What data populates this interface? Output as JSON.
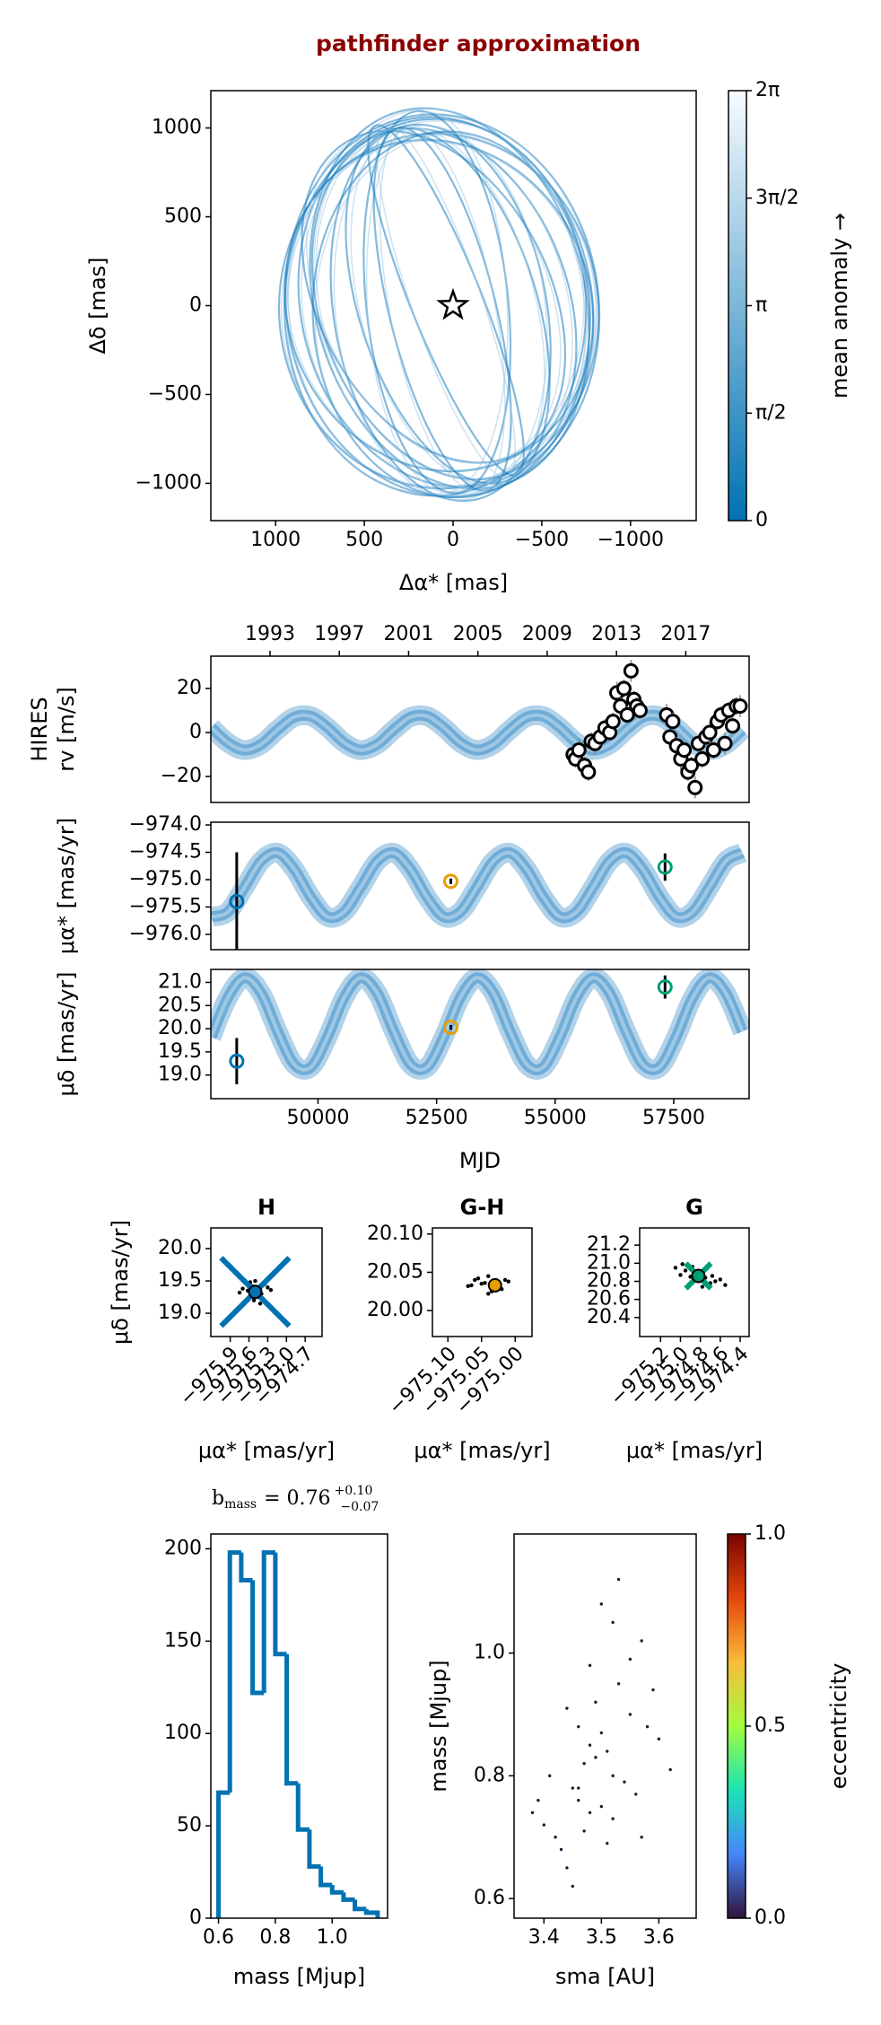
{
  "chart_data": [
    {
      "type": "orbit",
      "title": "pathfinder approximation",
      "xlabel": "Δα* [mas]",
      "ylabel": "Δδ [mas]",
      "xlim": [
        1365,
        -1370
      ],
      "ylim": [
        -1210,
        1210
      ],
      "xticks": [
        1000,
        500,
        0,
        {
          "value": -500,
          "label": "−500"
        },
        {
          "value": -1000,
          "label": "−1000"
        }
      ],
      "yticks": [
        1000,
        500,
        0,
        {
          "value": -500,
          "label": "−500"
        },
        {
          "value": -1000,
          "label": "−1000"
        }
      ],
      "color": "#1f7fc0",
      "star": [
        0,
        0
      ],
      "orbits": [
        {
          "cx": 60,
          "cy": 0,
          "rx": 880,
          "ry": 1080,
          "angle": -8
        },
        {
          "cx": 40,
          "cy": 20,
          "rx": 820,
          "ry": 1050,
          "angle": -12
        },
        {
          "cx": 80,
          "cy": -30,
          "rx": 900,
          "ry": 1000,
          "angle": -5
        },
        {
          "cx": 20,
          "cy": 40,
          "rx": 760,
          "ry": 1090,
          "angle": -15
        },
        {
          "cx": 100,
          "cy": -10,
          "rx": 850,
          "ry": 1060,
          "angle": 0
        },
        {
          "cx": 50,
          "cy": 10,
          "rx": 700,
          "ry": 1020,
          "angle": -20
        },
        {
          "cx": 70,
          "cy": -40,
          "rx": 600,
          "ry": 1070,
          "angle": -10
        },
        {
          "cx": 30,
          "cy": 0,
          "rx": 500,
          "ry": 1040,
          "angle": -18
        },
        {
          "cx": 90,
          "cy": 20,
          "rx": 400,
          "ry": 1080,
          "angle": -6
        },
        {
          "cx": 60,
          "cy": -20,
          "rx": 300,
          "ry": 1050,
          "angle": -14
        },
        {
          "cx": 40,
          "cy": 30,
          "rx": 200,
          "ry": 1060,
          "angle": -22
        },
        {
          "cx": 80,
          "cy": 0,
          "rx": 850,
          "ry": 950,
          "angle": -25
        },
        {
          "cx": 10,
          "cy": -50,
          "rx": 780,
          "ry": 1030,
          "angle": -3
        },
        {
          "cx": 110,
          "cy": 50,
          "rx": 650,
          "ry": 1000,
          "angle": -28
        }
      ],
      "colorbar": {
        "label": "mean anomaly →",
        "lim": [
          0,
          6.2832
        ],
        "colors": [
          "#0072b2",
          "#f7fbff"
        ],
        "ticks": [
          {
            "value": 0,
            "label": "0"
          },
          {
            "value": 1.5708,
            "label": "π/2"
          },
          {
            "value": 3.1416,
            "label": "π"
          },
          {
            "value": 4.7124,
            "label": "3π/2"
          },
          {
            "value": 6.2832,
            "label": "2π"
          }
        ]
      }
    },
    {
      "type": "line",
      "ylabel": [
        "HIRES",
        "rv [m/s]"
      ],
      "xlim": [
        47740,
        59090
      ],
      "ylim": [
        -31.8,
        34.7
      ],
      "yticks": [
        20,
        0,
        {
          "value": -20,
          "label": "−20"
        }
      ],
      "top_xticks": [
        {
          "value": 48988,
          "label": "1993"
        },
        {
          "value": 50449,
          "label": "1997"
        },
        {
          "value": 51910,
          "label": "2001"
        },
        {
          "value": 53371,
          "label": "2005"
        },
        {
          "value": 54832,
          "label": "2009"
        },
        {
          "value": 56293,
          "label": "2013"
        },
        {
          "value": 57754,
          "label": "2017"
        }
      ],
      "model": {
        "color": "#1f7fc0",
        "x": [
          47750,
          48100,
          48450,
          48800,
          49150,
          49500,
          49850,
          50200,
          50550,
          50900,
          51250,
          51600,
          51950,
          52300,
          52650,
          53000,
          53350,
          53700,
          54050,
          54400,
          54750,
          55100,
          55450,
          55800,
          56150,
          56500,
          56850,
          57200,
          57550,
          57900,
          58250,
          58600,
          58950
        ],
        "values": [
          2.3,
          -4.6,
          -8.0,
          -5.4,
          1.3,
          7.0,
          7.4,
          2.3,
          -4.6,
          -8.0,
          -5.4,
          1.3,
          7.0,
          7.4,
          2.3,
          -4.6,
          -8.0,
          -5.4,
          1.3,
          7.0,
          7.4,
          2.3,
          -4.6,
          -8.0,
          -5.4,
          1.3,
          7.0,
          7.4,
          2.3,
          -4.6,
          -8.0,
          -5.4,
          1.3
        ]
      },
      "points": {
        "color": "#000000",
        "x": [
          55380,
          55430,
          55500,
          55620,
          55700,
          55760,
          55840,
          55950,
          56050,
          56150,
          56220,
          56300,
          56380,
          56450,
          56520,
          56600,
          56660,
          56720,
          56790,
          57350,
          57420,
          57480,
          57560,
          57650,
          57720,
          57800,
          57870,
          57950,
          58020,
          58100,
          58180,
          58260,
          58340,
          58420,
          58500,
          58580,
          58660,
          58740,
          58820,
          58900
        ],
        "values": [
          -10,
          -12,
          -8,
          -15,
          -18,
          -4,
          -5,
          -2,
          2,
          0,
          5,
          18,
          12,
          20,
          8,
          28,
          15,
          12,
          10,
          8,
          -2,
          5,
          -6,
          -12,
          -8,
          -18,
          -15,
          -25,
          -5,
          -12,
          -2,
          0,
          -8,
          5,
          8,
          -5,
          10,
          3,
          12,
          12
        ],
        "errors": [
          4,
          4,
          5,
          4,
          4,
          4,
          5,
          4,
          4,
          4,
          4,
          5,
          4,
          4,
          4,
          5,
          4,
          4,
          4,
          5,
          4,
          4,
          4,
          5,
          4,
          4,
          4,
          5,
          4,
          4,
          4,
          5,
          4,
          4,
          4,
          5,
          4,
          4,
          4,
          5
        ]
      }
    },
    {
      "type": "line",
      "ylabel": "μα* [mas/yr]",
      "xlim": [
        47740,
        59090
      ],
      "ylim": [
        -976.28,
        -973.95
      ],
      "yticks": [
        {
          "value": -974.0,
          "label": "−974.0"
        },
        {
          "value": -974.5,
          "label": "−974.5"
        },
        {
          "value": -975.0,
          "label": "−975.0"
        },
        {
          "value": -975.5,
          "label": "−975.5"
        },
        {
          "value": -976.0,
          "label": "−976.0"
        }
      ],
      "model": {
        "color": "#1f7fc0",
        "x": [
          47750,
          48100,
          48450,
          48800,
          49150,
          49500,
          49850,
          50200,
          50550,
          50900,
          51250,
          51600,
          51950,
          52300,
          52650,
          53000,
          53350,
          53700,
          54050,
          54400,
          54750,
          55100,
          55450,
          55800,
          56150,
          56500,
          56850,
          57200,
          57550,
          57900,
          58250,
          58600,
          58950
        ],
        "values": [
          -975.68,
          -975.59,
          -975.14,
          -974.66,
          -974.51,
          -974.81,
          -975.32,
          -975.68,
          -975.59,
          -975.14,
          -974.66,
          -974.51,
          -974.81,
          -975.32,
          -975.68,
          -975.59,
          -975.14,
          -974.66,
          -974.51,
          -974.81,
          -975.32,
          -975.68,
          -975.59,
          -975.14,
          -974.66,
          -974.51,
          -974.81,
          -975.32,
          -975.68,
          -975.59,
          -975.14,
          -974.66,
          -974.51
        ]
      },
      "points": {
        "x": [
          48286,
          52800,
          57317
        ],
        "values": [
          -975.4,
          -975.03,
          -974.77
        ],
        "errors": [
          0.9,
          0.05,
          0.25
        ],
        "colors": [
          "#0072b2",
          "#e69f00",
          "#009e73"
        ]
      }
    },
    {
      "type": "line",
      "ylabel": "μδ [mas/yr]",
      "xlabel": "MJD",
      "xlim": [
        47740,
        59090
      ],
      "ylim": [
        18.49,
        21.28
      ],
      "xticks": [
        50000,
        52500,
        55000,
        57500
      ],
      "yticks": [
        {
          "value": 21.0,
          "label": "21.0"
        },
        20.5,
        {
          "value": 20.0,
          "label": "20.0"
        },
        19.5,
        {
          "value": 19.0,
          "label": "19.0"
        }
      ],
      "model": {
        "color": "#1f7fc0",
        "x": [
          47750,
          48100,
          48450,
          48800,
          49150,
          49500,
          49850,
          50200,
          50550,
          50900,
          51250,
          51600,
          51950,
          52300,
          52650,
          53000,
          53350,
          53700,
          54050,
          54400,
          54750,
          55100,
          55450,
          55800,
          56150,
          56500,
          56850,
          57200,
          57550,
          57900,
          58250,
          58600,
          58950
        ],
        "values": [
          19.82,
          20.67,
          21.1,
          20.77,
          19.94,
          19.23,
          19.17,
          19.82,
          20.67,
          21.1,
          20.77,
          19.94,
          19.23,
          19.17,
          19.82,
          20.67,
          21.1,
          20.77,
          19.94,
          19.23,
          19.17,
          19.82,
          20.67,
          21.1,
          20.77,
          19.94,
          19.23,
          19.17,
          19.82,
          20.67,
          21.1,
          20.77,
          19.94
        ]
      },
      "points": {
        "x": [
          48286,
          52800,
          57317
        ],
        "values": [
          19.3,
          20.03,
          20.9
        ],
        "errors": [
          0.5,
          0.05,
          0.25
        ],
        "colors": [
          "#0072b2",
          "#e69f00",
          "#009e73"
        ]
      }
    },
    {
      "type": "cloud",
      "title": "H",
      "xlabel": "μα* [mas/yr]",
      "ylabel": "μδ [mas/yr]",
      "xlim": [
        -976.21,
        -974.43
      ],
      "ylim": [
        18.64,
        20.32
      ],
      "xticks": [
        {
          "value": -975.9,
          "label": "−975.9"
        },
        {
          "value": -975.6,
          "label": "−975.6"
        },
        {
          "value": -975.3,
          "label": "−975.3"
        },
        {
          "value": -975.0,
          "label": "−975.0"
        },
        {
          "value": -974.7,
          "label": "−974.7"
        }
      ],
      "yticks": [
        {
          "value": 20.0,
          "label": "20.0"
        },
        19.5,
        {
          "value": 19.0,
          "label": "19.0"
        }
      ],
      "x": [
        -975.62,
        -975.48,
        -975.55,
        -975.4,
        -975.7,
        -975.35,
        -975.52,
        -975.45,
        -975.6,
        -975.3,
        -975.58,
        -975.42,
        -975.75,
        -975.25,
        -975.5,
        -975.38
      ],
      "values": [
        19.35,
        19.28,
        19.42,
        19.3,
        19.38,
        19.45,
        19.2,
        19.33,
        19.25,
        19.4,
        19.48,
        19.15,
        19.32,
        19.36,
        19.5,
        19.22
      ],
      "point": {
        "x": -975.5,
        "y": 19.33,
        "color": "#0072b2"
      }
    },
    {
      "type": "cloud",
      "title": "G-H",
      "xlabel": "μα* [mas/yr]",
      "xlim": [
        -975.123,
        -974.975
      ],
      "ylim": [
        19.966,
        20.108
      ],
      "xticks": [
        {
          "value": -975.1,
          "label": "−975.10"
        },
        {
          "value": -975.05,
          "label": "−975.05"
        },
        {
          "value": -975.0,
          "label": "−975.00"
        }
      ],
      "yticks": [
        {
          "value": 20.1,
          "label": "20.10"
        },
        20.05,
        {
          "value": 20.0,
          "label": "20.00"
        }
      ],
      "x": [
        -975.05,
        -975.03,
        -975.06,
        -975.02,
        -975.04,
        -975.07,
        -975.01,
        -975.035,
        -975.055,
        -975.025,
        -975.045,
        -975.065,
        -975.015,
        -975.04
      ],
      "values": [
        20.035,
        20.03,
        20.04,
        20.028,
        20.045,
        20.032,
        20.038,
        20.025,
        20.042,
        20.03,
        20.036,
        20.033,
        20.04,
        20.022
      ],
      "point": {
        "x": -975.03,
        "y": 20.033,
        "color": "#e69f00"
      }
    },
    {
      "type": "cloud",
      "title": "G",
      "xlabel": "μα* [mas/yr]",
      "xlim": [
        -975.41,
        -974.31
      ],
      "ylim": [
        20.19,
        21.39
      ],
      "xticks": [
        {
          "value": -975.2,
          "label": "−975.2"
        },
        {
          "value": -975.0,
          "label": "−975.0"
        },
        {
          "value": -974.8,
          "label": "−974.8"
        },
        {
          "value": -974.6,
          "label": "−974.6"
        },
        {
          "value": -974.4,
          "label": "−974.4"
        }
      ],
      "yticks": [
        21.2,
        {
          "value": 21.0,
          "label": "21.0"
        },
        20.8,
        20.6,
        20.4
      ],
      "x": [
        -975.05,
        -974.95,
        -974.85,
        -974.75,
        -974.65,
        -974.55,
        -974.9,
        -974.8,
        -974.7,
        -975.0,
        -974.6,
        -974.88,
        -974.78,
        -974.68,
        -974.98
      ],
      "values": [
        20.95,
        20.92,
        20.88,
        20.84,
        20.8,
        20.76,
        20.85,
        20.9,
        20.78,
        20.87,
        20.82,
        20.96,
        20.74,
        20.86,
        20.99
      ],
      "point": {
        "x": -974.82,
        "y": 20.86,
        "color": "#009e73"
      }
    },
    {
      "type": "histogram",
      "annotation": {
        "label": "b",
        "subscript": "mass",
        "text": "= 0.76",
        "upper": "+0.10",
        "lower": "−0.07"
      },
      "xlabel": "mass [Mjup]",
      "xlim": [
        0.573,
        1.195
      ],
      "ylim": [
        0,
        208
      ],
      "xticks": [
        0.6,
        0.8,
        {
          "value": 1.0,
          "label": "1.0"
        }
      ],
      "yticks": [
        0,
        50,
        100,
        150,
        200
      ],
      "color": "#0072b2",
      "bins": [
        0.6,
        0.64,
        0.68,
        0.72,
        0.76,
        0.8,
        0.84,
        0.88,
        0.92,
        0.96,
        1.0,
        1.04,
        1.08,
        1.12,
        1.16
      ],
      "counts": [
        68,
        198,
        183,
        122,
        198,
        143,
        73,
        48,
        28,
        18,
        14,
        10,
        5,
        3
      ]
    },
    {
      "type": "scatter",
      "xlabel": "sma [AU]",
      "ylabel": "mass [Mjup]",
      "xlim": [
        3.348,
        3.665
      ],
      "ylim": [
        0.568,
        1.194
      ],
      "xticks": [
        3.4,
        3.5,
        3.6
      ],
      "yticks": [
        0.6,
        0.8,
        {
          "value": 1.0,
          "label": "1.0"
        }
      ],
      "color": "#30123b",
      "x": [
        3.4,
        3.45,
        3.48,
        3.52,
        3.5,
        3.55,
        3.43,
        3.47,
        3.53,
        3.58,
        3.38,
        3.42,
        3.46,
        3.49,
        3.51,
        3.54,
        3.57,
        3.6,
        3.44,
        3.48,
        3.5,
        3.52,
        3.46,
        3.41,
        3.56,
        3.59,
        3.47,
        3.53,
        3.49,
        3.45,
        3.51,
        3.62,
        3.39,
        3.55,
        3.5,
        3.48,
        3.44,
        3.57,
        3.52,
        3.46
      ],
      "values": [
        0.72,
        0.78,
        0.85,
        0.8,
        0.75,
        0.9,
        0.68,
        0.82,
        0.95,
        0.88,
        0.74,
        0.7,
        0.76,
        0.92,
        0.84,
        0.79,
        1.02,
        0.86,
        0.65,
        0.98,
        1.08,
        0.73,
        0.88,
        0.8,
        0.77,
        0.94,
        0.71,
        1.12,
        0.83,
        0.62,
        0.69,
        0.81,
        0.76,
        0.99,
        0.87,
        0.74,
        0.91,
        0.7,
        1.05,
        0.78
      ],
      "colorbar": {
        "label": "eccentricity",
        "lim": [
          0,
          1
        ],
        "colors": [
          "#30123b",
          "#4686fb",
          "#1ae4b6",
          "#a2fc3c",
          "#fabb3a",
          "#e4460a",
          "#7a0403"
        ],
        "ticks": [
          {
            "value": 0,
            "label": "0.0"
          },
          0.5,
          {
            "value": 1,
            "label": "1.0"
          }
        ]
      }
    }
  ]
}
